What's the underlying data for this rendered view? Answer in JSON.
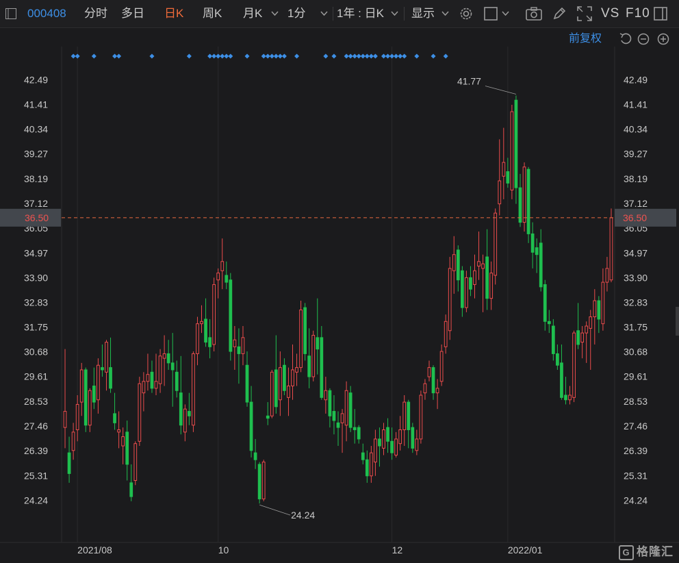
{
  "toolbar": {
    "stock_code": "000408",
    "tabs": [
      "分时",
      "多日",
      "日K",
      "周K",
      "月K",
      "1分"
    ],
    "active_tab": "日K",
    "range_label": "1年 : 日K",
    "display_label": "显示",
    "vs_label": "VS",
    "f10_label": "F10"
  },
  "chart": {
    "adjust_label": "前复权",
    "price_axis_left": [
      "42.49",
      "41.41",
      "40.34",
      "39.27",
      "38.19",
      "37.12",
      "36.05",
      "34.97",
      "33.90",
      "32.83",
      "31.75",
      "30.68",
      "29.61",
      "28.53",
      "27.46",
      "26.39",
      "25.31",
      "24.24"
    ],
    "price_axis_right": [
      "42.49",
      "41.41",
      "40.34",
      "39.27",
      "38.19",
      "37.12",
      "36.05",
      "34.97",
      "33.90",
      "32.83",
      "31.75",
      "30.68",
      "29.61",
      "28.53",
      "27.46",
      "26.39",
      "25.31",
      "24.24"
    ],
    "current_price": "36.50",
    "high_annotation": "41.77",
    "low_annotation": "24.24",
    "date_labels": [
      "2021/08",
      "10",
      "12",
      "2022/01"
    ],
    "colors": {
      "up": "#ec4c4c",
      "down": "#1fbf4f",
      "marker": "#3d8fe6",
      "price_line": "#e8683f"
    }
  },
  "chart_data": {
    "type": "candlestick",
    "y_range": [
      23.6,
      43.3
    ],
    "candles": [
      {
        "o": 27.4,
        "h": 30.8,
        "l": 26.5,
        "c": 28.1
      },
      {
        "o": 26.3,
        "h": 27.0,
        "l": 25.0,
        "c": 25.4
      },
      {
        "o": 26.4,
        "h": 27.6,
        "l": 26.0,
        "c": 27.2
      },
      {
        "o": 27.3,
        "h": 28.8,
        "l": 26.8,
        "c": 28.4
      },
      {
        "o": 28.5,
        "h": 30.2,
        "l": 27.9,
        "c": 29.9
      },
      {
        "o": 29.9,
        "h": 30.0,
        "l": 27.2,
        "c": 27.5
      },
      {
        "o": 27.5,
        "h": 29.1,
        "l": 27.2,
        "c": 29.0
      },
      {
        "o": 29.2,
        "h": 30.0,
        "l": 28.2,
        "c": 28.5
      },
      {
        "o": 28.6,
        "h": 30.4,
        "l": 28.0,
        "c": 30.1
      },
      {
        "o": 30.0,
        "h": 31.0,
        "l": 29.6,
        "c": 29.9
      },
      {
        "o": 29.8,
        "h": 31.2,
        "l": 29.0,
        "c": 31.1
      },
      {
        "o": 30.0,
        "h": 31.3,
        "l": 28.9,
        "c": 29.1
      },
      {
        "o": 28.0,
        "h": 28.9,
        "l": 27.3,
        "c": 27.6
      },
      {
        "o": 27.2,
        "h": 28.1,
        "l": 26.5,
        "c": 27.3
      },
      {
        "o": 26.6,
        "h": 27.4,
        "l": 25.8,
        "c": 27.0
      },
      {
        "o": 27.2,
        "h": 27.7,
        "l": 25.1,
        "c": 25.8
      },
      {
        "o": 25.0,
        "h": 25.8,
        "l": 24.2,
        "c": 24.4
      },
      {
        "o": 25.1,
        "h": 26.8,
        "l": 24.9,
        "c": 26.7
      },
      {
        "o": 26.8,
        "h": 29.6,
        "l": 26.6,
        "c": 29.3
      },
      {
        "o": 28.9,
        "h": 29.8,
        "l": 28.1,
        "c": 29.4
      },
      {
        "o": 29.4,
        "h": 30.6,
        "l": 29.0,
        "c": 29.7
      },
      {
        "o": 29.8,
        "h": 30.3,
        "l": 28.9,
        "c": 29.1
      },
      {
        "o": 29.1,
        "h": 30.6,
        "l": 28.8,
        "c": 29.4
      },
      {
        "o": 29.3,
        "h": 30.8,
        "l": 28.9,
        "c": 30.5
      },
      {
        "o": 30.4,
        "h": 31.4,
        "l": 29.2,
        "c": 30.6
      },
      {
        "o": 30.6,
        "h": 31.2,
        "l": 29.9,
        "c": 30.2
      },
      {
        "o": 30.2,
        "h": 31.5,
        "l": 28.3,
        "c": 29.9
      },
      {
        "o": 29.8,
        "h": 30.3,
        "l": 28.7,
        "c": 29.0
      },
      {
        "o": 28.9,
        "h": 30.5,
        "l": 27.1,
        "c": 27.5
      },
      {
        "o": 27.2,
        "h": 28.4,
        "l": 26.8,
        "c": 28.2
      },
      {
        "o": 28.1,
        "h": 28.9,
        "l": 27.5,
        "c": 27.9
      },
      {
        "o": 27.5,
        "h": 30.7,
        "l": 27.2,
        "c": 30.6
      },
      {
        "o": 30.6,
        "h": 32.2,
        "l": 30.1,
        "c": 31.9
      },
      {
        "o": 31.9,
        "h": 32.7,
        "l": 31.5,
        "c": 32.0
      },
      {
        "o": 32.1,
        "h": 33.0,
        "l": 30.9,
        "c": 31.1
      },
      {
        "o": 31.3,
        "h": 32.1,
        "l": 30.4,
        "c": 30.9
      },
      {
        "o": 31.0,
        "h": 33.9,
        "l": 30.7,
        "c": 33.6
      },
      {
        "o": 33.8,
        "h": 34.3,
        "l": 33.0,
        "c": 34.1
      },
      {
        "o": 34.2,
        "h": 35.6,
        "l": 33.4,
        "c": 34.6
      },
      {
        "o": 34.0,
        "h": 34.6,
        "l": 33.4,
        "c": 33.7
      },
      {
        "o": 33.8,
        "h": 34.1,
        "l": 30.3,
        "c": 30.7
      },
      {
        "o": 30.9,
        "h": 31.8,
        "l": 29.9,
        "c": 31.2
      },
      {
        "o": 30.9,
        "h": 31.7,
        "l": 29.3,
        "c": 30.6
      },
      {
        "o": 30.6,
        "h": 31.8,
        "l": 30.1,
        "c": 31.3
      },
      {
        "o": 30.1,
        "h": 30.7,
        "l": 28.3,
        "c": 28.5
      },
      {
        "o": 28.5,
        "h": 29.2,
        "l": 26.1,
        "c": 26.4
      },
      {
        "o": 26.3,
        "h": 26.9,
        "l": 25.6,
        "c": 26.0
      },
      {
        "o": 25.8,
        "h": 25.9,
        "l": 24.1,
        "c": 24.3
      },
      {
        "o": 24.3,
        "h": 26.0,
        "l": 24.2,
        "c": 25.9
      },
      {
        "o": 27.9,
        "h": 28.5,
        "l": 27.5,
        "c": 27.8
      },
      {
        "o": 27.9,
        "h": 29.9,
        "l": 27.8,
        "c": 29.8
      },
      {
        "o": 29.9,
        "h": 31.4,
        "l": 28.0,
        "c": 28.3
      },
      {
        "o": 28.6,
        "h": 30.7,
        "l": 27.9,
        "c": 30.0
      },
      {
        "o": 30.1,
        "h": 30.4,
        "l": 28.8,
        "c": 29.0
      },
      {
        "o": 28.7,
        "h": 30.0,
        "l": 27.9,
        "c": 29.2
      },
      {
        "o": 29.2,
        "h": 31.0,
        "l": 28.6,
        "c": 29.9
      },
      {
        "o": 29.8,
        "h": 30.6,
        "l": 29.2,
        "c": 30.0
      },
      {
        "o": 30.0,
        "h": 32.9,
        "l": 29.8,
        "c": 32.5
      },
      {
        "o": 32.6,
        "h": 32.8,
        "l": 30.3,
        "c": 30.6
      },
      {
        "o": 30.5,
        "h": 31.7,
        "l": 29.1,
        "c": 29.6
      },
      {
        "o": 29.6,
        "h": 31.6,
        "l": 29.4,
        "c": 31.4
      },
      {
        "o": 31.3,
        "h": 33.0,
        "l": 29.7,
        "c": 30.8
      },
      {
        "o": 31.3,
        "h": 31.8,
        "l": 28.6,
        "c": 28.7
      },
      {
        "o": 28.6,
        "h": 29.6,
        "l": 28.0,
        "c": 29.0
      },
      {
        "o": 29.0,
        "h": 29.1,
        "l": 27.4,
        "c": 27.9
      },
      {
        "o": 28.1,
        "h": 28.8,
        "l": 27.1,
        "c": 27.7
      },
      {
        "o": 27.6,
        "h": 28.1,
        "l": 26.6,
        "c": 27.4
      },
      {
        "o": 27.6,
        "h": 28.2,
        "l": 26.3,
        "c": 28.0
      },
      {
        "o": 27.5,
        "h": 29.4,
        "l": 26.8,
        "c": 29.0
      },
      {
        "o": 28.9,
        "h": 29.2,
        "l": 27.2,
        "c": 27.4
      },
      {
        "o": 27.4,
        "h": 28.2,
        "l": 26.7,
        "c": 27.3
      },
      {
        "o": 27.4,
        "h": 27.5,
        "l": 26.7,
        "c": 26.9
      },
      {
        "o": 26.3,
        "h": 26.7,
        "l": 25.8,
        "c": 26.0
      },
      {
        "o": 26.0,
        "h": 26.4,
        "l": 25.0,
        "c": 25.3
      },
      {
        "o": 25.3,
        "h": 26.6,
        "l": 25.0,
        "c": 26.3
      },
      {
        "o": 25.9,
        "h": 27.3,
        "l": 25.3,
        "c": 26.9
      },
      {
        "o": 26.9,
        "h": 27.4,
        "l": 25.7,
        "c": 26.6
      },
      {
        "o": 26.5,
        "h": 27.6,
        "l": 26.2,
        "c": 27.3
      },
      {
        "o": 27.4,
        "h": 27.8,
        "l": 26.3,
        "c": 26.8
      },
      {
        "o": 26.8,
        "h": 27.4,
        "l": 26.0,
        "c": 26.3
      },
      {
        "o": 26.2,
        "h": 27.2,
        "l": 26.1,
        "c": 26.9
      },
      {
        "o": 26.7,
        "h": 27.9,
        "l": 26.4,
        "c": 27.3
      },
      {
        "o": 27.3,
        "h": 28.8,
        "l": 26.6,
        "c": 28.5
      },
      {
        "o": 28.5,
        "h": 28.6,
        "l": 26.5,
        "c": 27.3
      },
      {
        "o": 27.4,
        "h": 27.6,
        "l": 26.3,
        "c": 26.5
      },
      {
        "o": 26.4,
        "h": 27.3,
        "l": 26.2,
        "c": 26.9
      },
      {
        "o": 26.9,
        "h": 29.0,
        "l": 26.7,
        "c": 28.8
      },
      {
        "o": 28.9,
        "h": 29.5,
        "l": 28.6,
        "c": 29.3
      },
      {
        "o": 29.6,
        "h": 30.3,
        "l": 29.4,
        "c": 30.0
      },
      {
        "o": 30.0,
        "h": 30.1,
        "l": 28.6,
        "c": 28.9
      },
      {
        "o": 28.9,
        "h": 29.5,
        "l": 28.2,
        "c": 29.1
      },
      {
        "o": 29.4,
        "h": 31.0,
        "l": 29.2,
        "c": 30.7
      },
      {
        "o": 30.9,
        "h": 32.3,
        "l": 30.6,
        "c": 32.0
      },
      {
        "o": 31.6,
        "h": 34.8,
        "l": 31.2,
        "c": 34.3
      },
      {
        "o": 34.2,
        "h": 35.7,
        "l": 33.2,
        "c": 34.9
      },
      {
        "o": 35.1,
        "h": 35.3,
        "l": 33.3,
        "c": 33.8
      },
      {
        "o": 34.2,
        "h": 34.4,
        "l": 32.2,
        "c": 32.6
      },
      {
        "o": 32.6,
        "h": 34.2,
        "l": 32.4,
        "c": 33.9
      },
      {
        "o": 33.9,
        "h": 34.4,
        "l": 33.1,
        "c": 33.4
      },
      {
        "o": 33.6,
        "h": 34.9,
        "l": 33.0,
        "c": 34.2
      },
      {
        "o": 34.4,
        "h": 35.9,
        "l": 33.8,
        "c": 34.6
      },
      {
        "o": 34.3,
        "h": 34.9,
        "l": 32.4,
        "c": 34.5
      },
      {
        "o": 34.8,
        "h": 36.0,
        "l": 32.5,
        "c": 33.0
      },
      {
        "o": 33.0,
        "h": 34.6,
        "l": 32.5,
        "c": 34.1
      },
      {
        "o": 34.0,
        "h": 36.9,
        "l": 33.6,
        "c": 36.7
      },
      {
        "o": 37.1,
        "h": 39.9,
        "l": 36.6,
        "c": 38.1
      },
      {
        "o": 38.3,
        "h": 40.4,
        "l": 37.3,
        "c": 38.9
      },
      {
        "o": 38.5,
        "h": 39.1,
        "l": 37.8,
        "c": 38.0
      },
      {
        "o": 37.7,
        "h": 41.4,
        "l": 37.3,
        "c": 41.1
      },
      {
        "o": 41.6,
        "h": 41.8,
        "l": 37.1,
        "c": 37.8
      },
      {
        "o": 37.8,
        "h": 38.4,
        "l": 36.1,
        "c": 36.3
      },
      {
        "o": 36.3,
        "h": 38.9,
        "l": 35.9,
        "c": 38.7
      },
      {
        "o": 38.6,
        "h": 38.7,
        "l": 35.4,
        "c": 35.8
      },
      {
        "o": 35.8,
        "h": 36.3,
        "l": 34.3,
        "c": 35.0
      },
      {
        "o": 35.2,
        "h": 35.6,
        "l": 34.1,
        "c": 34.9
      },
      {
        "o": 35.4,
        "h": 36.0,
        "l": 33.3,
        "c": 33.5
      },
      {
        "o": 33.6,
        "h": 33.8,
        "l": 31.6,
        "c": 32.0
      },
      {
        "o": 32.0,
        "h": 32.5,
        "l": 31.5,
        "c": 31.9
      },
      {
        "o": 31.8,
        "h": 32.1,
        "l": 30.3,
        "c": 30.6
      },
      {
        "o": 30.6,
        "h": 31.0,
        "l": 29.9,
        "c": 30.1
      },
      {
        "o": 30.2,
        "h": 31.0,
        "l": 28.6,
        "c": 28.7
      },
      {
        "o": 28.8,
        "h": 29.6,
        "l": 28.4,
        "c": 28.6
      },
      {
        "o": 28.6,
        "h": 29.2,
        "l": 28.4,
        "c": 28.8
      },
      {
        "o": 28.7,
        "h": 31.6,
        "l": 28.5,
        "c": 31.5
      },
      {
        "o": 31.6,
        "h": 32.8,
        "l": 30.8,
        "c": 31.0
      },
      {
        "o": 31.1,
        "h": 31.8,
        "l": 30.4,
        "c": 31.5
      },
      {
        "o": 31.5,
        "h": 32.0,
        "l": 30.2,
        "c": 31.8
      },
      {
        "o": 31.7,
        "h": 32.5,
        "l": 29.9,
        "c": 32.2
      },
      {
        "o": 32.2,
        "h": 33.4,
        "l": 31.0,
        "c": 32.9
      },
      {
        "o": 32.9,
        "h": 33.1,
        "l": 31.5,
        "c": 32.1
      },
      {
        "o": 31.9,
        "h": 34.3,
        "l": 31.6,
        "c": 33.7
      },
      {
        "o": 33.7,
        "h": 34.8,
        "l": 33.3,
        "c": 34.3
      },
      {
        "o": 33.8,
        "h": 36.9,
        "l": 33.7,
        "c": 36.5
      }
    ]
  }
}
